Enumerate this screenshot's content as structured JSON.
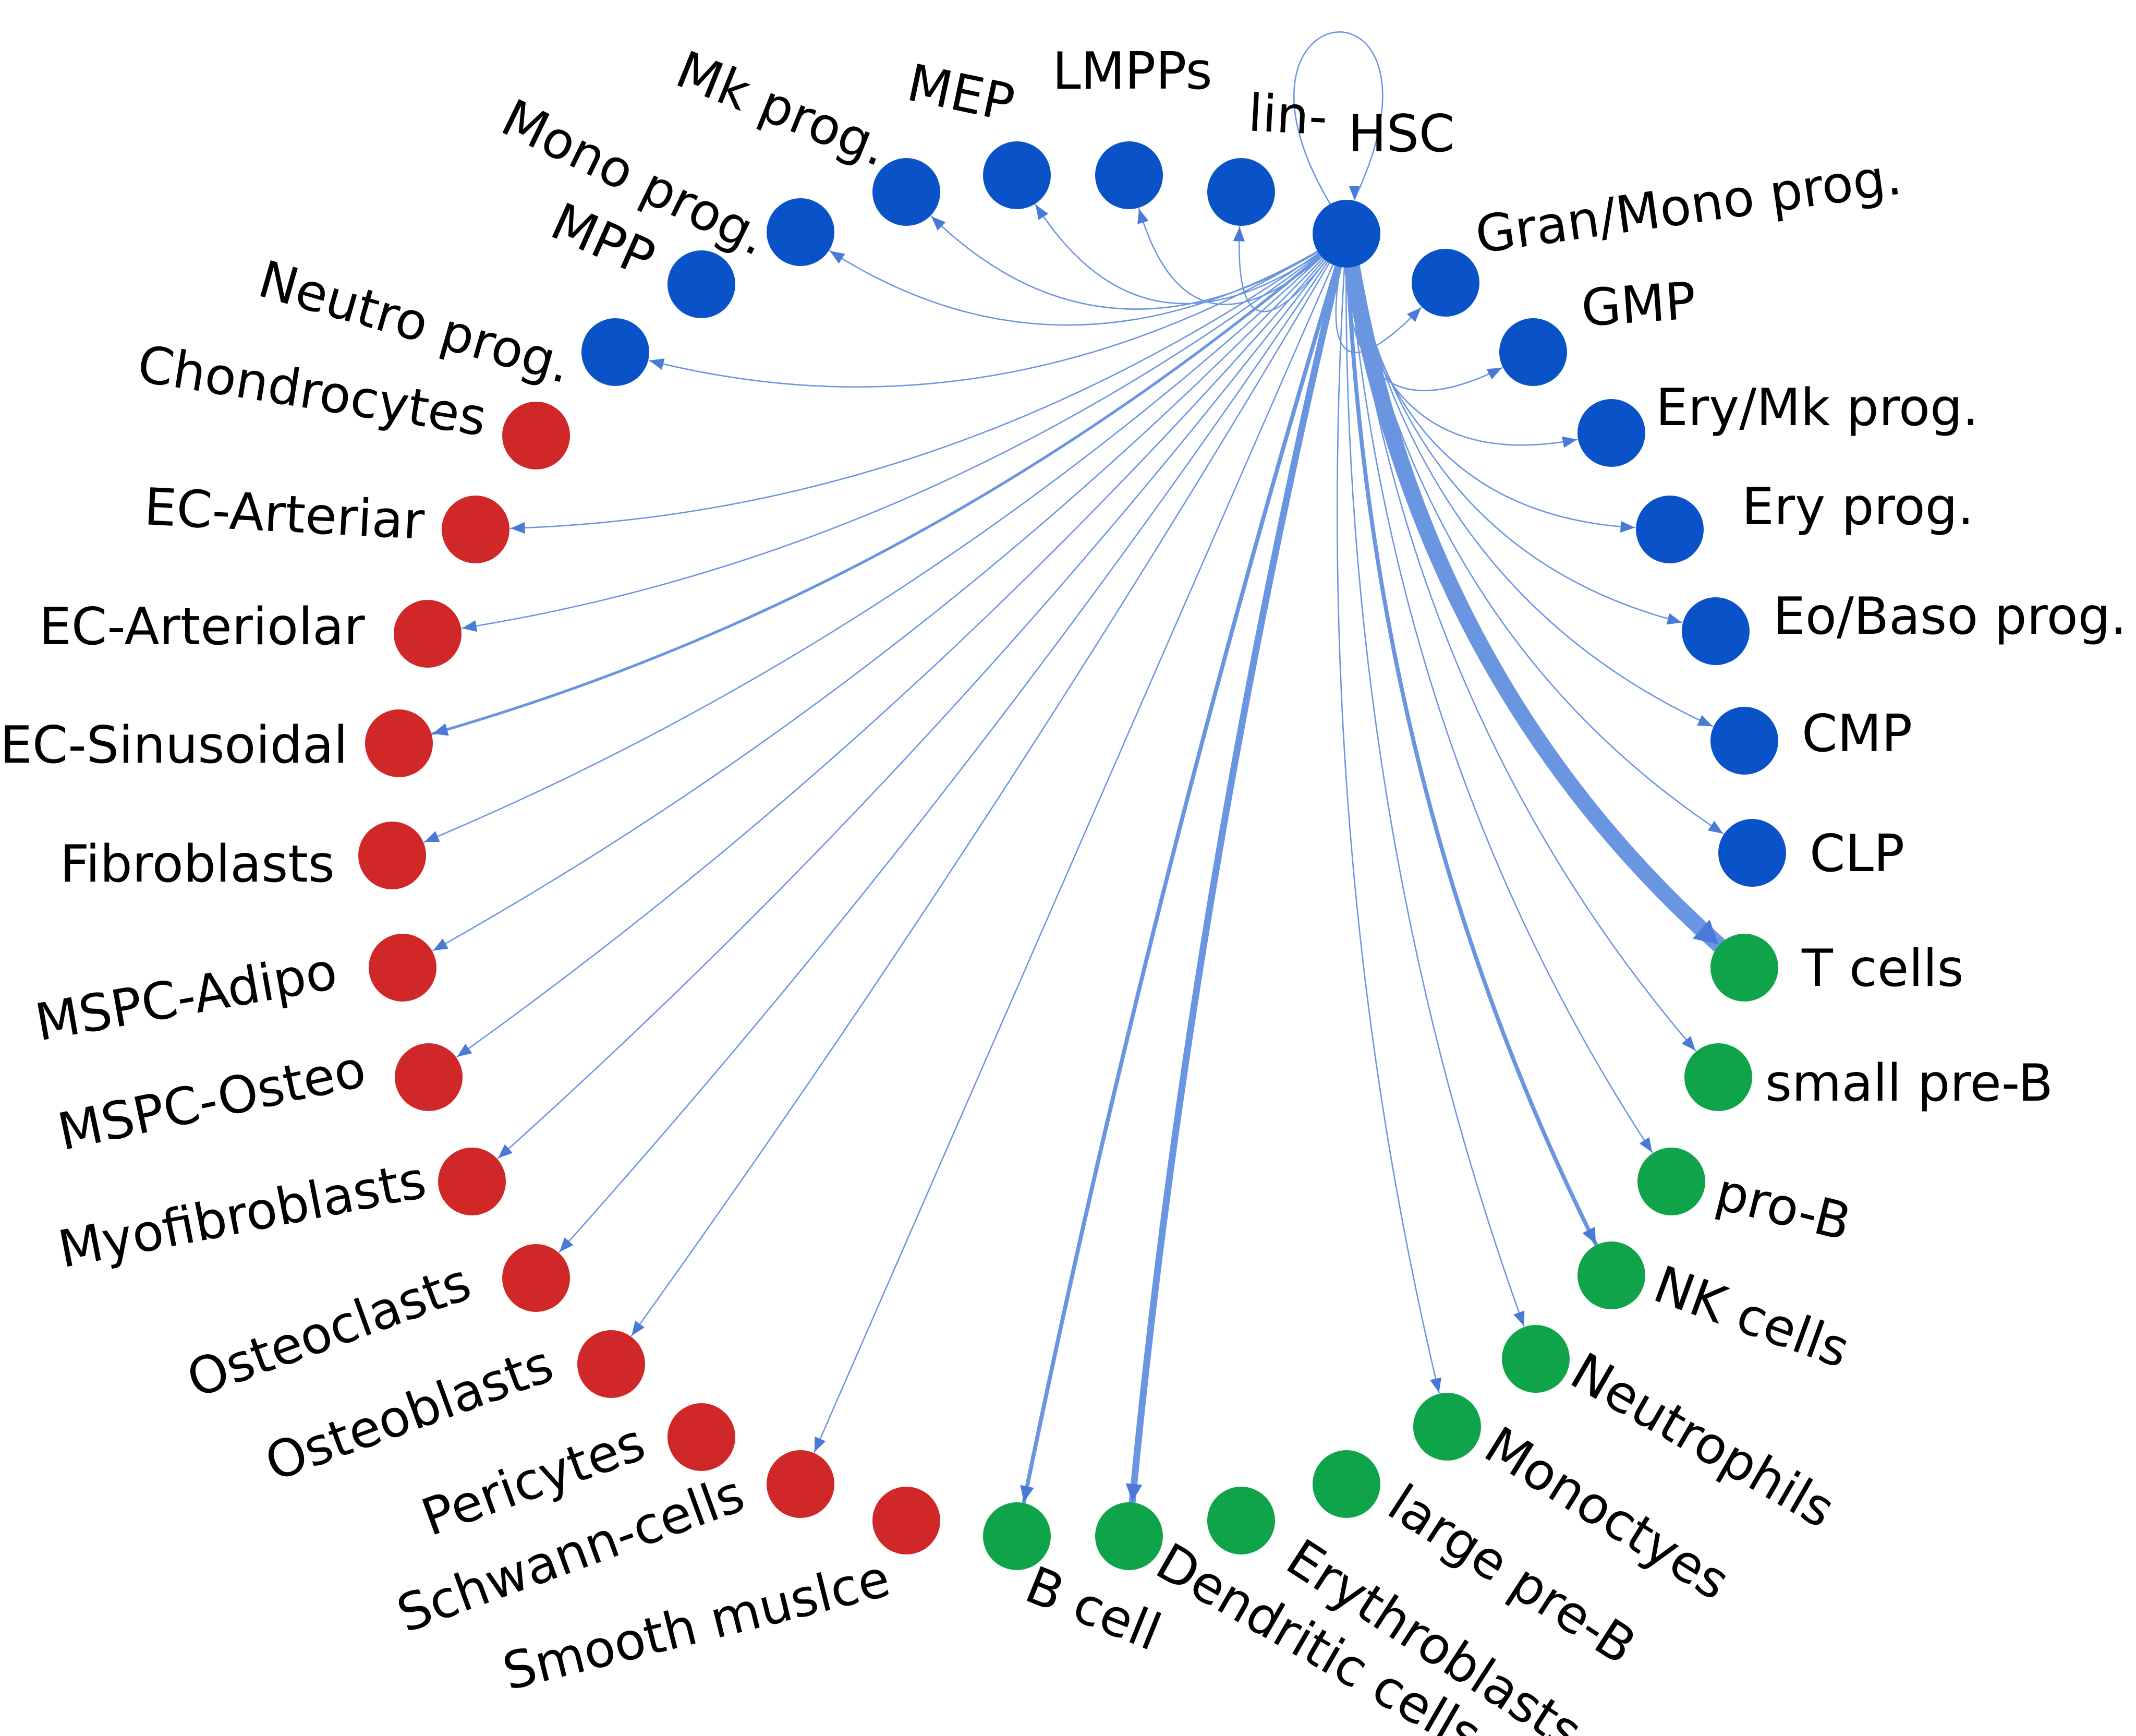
{
  "colors": {
    "edge": "#6a95e0",
    "arrow": "#4a7ad8",
    "progenitor": "#0a52c8",
    "niche": "#d02828",
    "mature": "#10a44a"
  },
  "source": "HSC",
  "nodes": [
    {
      "id": "HSC",
      "label": "HSC",
      "group": "progenitor"
    },
    {
      "id": "lin",
      "label": "lin-",
      "group": "progenitor"
    },
    {
      "id": "LMPPs",
      "label": "LMPPs",
      "group": "progenitor"
    },
    {
      "id": "MEP",
      "label": "MEP",
      "group": "progenitor"
    },
    {
      "id": "MkProg",
      "label": "Mk prog.",
      "group": "progenitor"
    },
    {
      "id": "MonoProg",
      "label": "Mono prog.",
      "group": "progenitor"
    },
    {
      "id": "MPP",
      "label": "MPP",
      "group": "progenitor"
    },
    {
      "id": "NeutroProg",
      "label": "Neutro prog.",
      "group": "progenitor"
    },
    {
      "id": "Chondrocytes",
      "label": "Chondrocytes",
      "group": "niche"
    },
    {
      "id": "ECArteriar",
      "label": "EC-Arteriar",
      "group": "niche"
    },
    {
      "id": "ECArteriolar",
      "label": "EC-Arteriolar",
      "group": "niche"
    },
    {
      "id": "ECSinusoidal",
      "label": "EC-Sinusoidal",
      "group": "niche"
    },
    {
      "id": "Fibroblasts",
      "label": "Fibroblasts",
      "group": "niche"
    },
    {
      "id": "MSPCAdipo",
      "label": "MSPC-Adipo",
      "group": "niche"
    },
    {
      "id": "MSPCOsteo",
      "label": "MSPC-Osteo",
      "group": "niche"
    },
    {
      "id": "Myofibroblasts",
      "label": "Myofibroblasts",
      "group": "niche"
    },
    {
      "id": "Osteoclasts",
      "label": "Osteoclasts",
      "group": "niche"
    },
    {
      "id": "Osteoblasts",
      "label": "Osteoblasts",
      "group": "niche"
    },
    {
      "id": "Pericytes",
      "label": "Pericytes",
      "group": "niche"
    },
    {
      "id": "Schwann",
      "label": "Schwann-cells",
      "group": "niche"
    },
    {
      "id": "SmoothMuscle",
      "label": "Smooth muslce",
      "group": "niche"
    },
    {
      "id": "Bcell",
      "label": "B cell",
      "group": "mature"
    },
    {
      "id": "Dendritic",
      "label": "Dendritic cells",
      "group": "mature"
    },
    {
      "id": "Erythroblasts",
      "label": "Erythroblasts",
      "group": "mature"
    },
    {
      "id": "LargePreB",
      "label": "large pre-B",
      "group": "mature"
    },
    {
      "id": "Monocytes",
      "label": "Monoctyes",
      "group": "mature"
    },
    {
      "id": "Neutrophils",
      "label": "Neutrophils",
      "group": "mature"
    },
    {
      "id": "NKcells",
      "label": "NK cells",
      "group": "mature"
    },
    {
      "id": "ProB",
      "label": "pro-B",
      "group": "mature"
    },
    {
      "id": "SmallPreB",
      "label": "small pre-B",
      "group": "mature"
    },
    {
      "id": "Tcells",
      "label": "T cells",
      "group": "mature"
    },
    {
      "id": "CLP",
      "label": "CLP",
      "group": "progenitor"
    },
    {
      "id": "CMP",
      "label": "CMP",
      "group": "progenitor"
    },
    {
      "id": "EoBasoProg",
      "label": "Eo/Baso prog.",
      "group": "progenitor"
    },
    {
      "id": "EryProg",
      "label": "Ery prog.",
      "group": "progenitor"
    },
    {
      "id": "EryMkProg",
      "label": "Ery/Mk prog.",
      "group": "progenitor"
    },
    {
      "id": "GMP",
      "label": "GMP",
      "group": "progenitor"
    },
    {
      "id": "GranMonoProg",
      "label": "Gran/Mono prog.",
      "group": "progenitor"
    }
  ],
  "edges": [
    {
      "from": "HSC",
      "to": "HSC",
      "weight": 1
    },
    {
      "from": "HSC",
      "to": "lin",
      "weight": 1
    },
    {
      "from": "HSC",
      "to": "LMPPs",
      "weight": 1
    },
    {
      "from": "HSC",
      "to": "MEP",
      "weight": 1
    },
    {
      "from": "HSC",
      "to": "MkProg",
      "weight": 1
    },
    {
      "from": "HSC",
      "to": "MonoProg",
      "weight": 1
    },
    {
      "from": "HSC",
      "to": "NeutroProg",
      "weight": 1
    },
    {
      "from": "HSC",
      "to": "ECArteriar",
      "weight": 1
    },
    {
      "from": "HSC",
      "to": "ECArteriolar",
      "weight": 1
    },
    {
      "from": "HSC",
      "to": "ECSinusoidal",
      "weight": 2
    },
    {
      "from": "HSC",
      "to": "Fibroblasts",
      "weight": 1
    },
    {
      "from": "HSC",
      "to": "MSPCAdipo",
      "weight": 1
    },
    {
      "from": "HSC",
      "to": "MSPCOsteo",
      "weight": 1
    },
    {
      "from": "HSC",
      "to": "Myofibroblasts",
      "weight": 1
    },
    {
      "from": "HSC",
      "to": "Osteoclasts",
      "weight": 1
    },
    {
      "from": "HSC",
      "to": "Osteoblasts",
      "weight": 1
    },
    {
      "from": "HSC",
      "to": "Schwann",
      "weight": 1
    },
    {
      "from": "HSC",
      "to": "Bcell",
      "weight": 3
    },
    {
      "from": "HSC",
      "to": "Dendritic",
      "weight": 5
    },
    {
      "from": "HSC",
      "to": "Monocytes",
      "weight": 1
    },
    {
      "from": "HSC",
      "to": "Neutrophils",
      "weight": 1
    },
    {
      "from": "HSC",
      "to": "NKcells",
      "weight": 3
    },
    {
      "from": "HSC",
      "to": "ProB",
      "weight": 1
    },
    {
      "from": "HSC",
      "to": "SmallPreB",
      "weight": 1
    },
    {
      "from": "HSC",
      "to": "Tcells",
      "weight": 12
    },
    {
      "from": "HSC",
      "to": "CLP",
      "weight": 1
    },
    {
      "from": "HSC",
      "to": "CMP",
      "weight": 1
    },
    {
      "from": "HSC",
      "to": "EoBasoProg",
      "weight": 1
    },
    {
      "from": "HSC",
      "to": "EryProg",
      "weight": 1
    },
    {
      "from": "HSC",
      "to": "EryMkProg",
      "weight": 1
    },
    {
      "from": "HSC",
      "to": "GMP",
      "weight": 1
    },
    {
      "from": "HSC",
      "to": "GranMonoProg",
      "weight": 1
    }
  ]
}
